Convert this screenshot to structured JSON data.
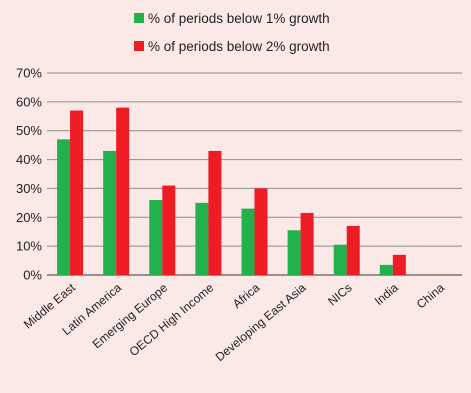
{
  "chart_data": {
    "type": "bar",
    "categories": [
      "Middle East",
      "Latin America",
      "Emerging Europe",
      "OECD High Income",
      "Africa",
      "Developing East Asia",
      "NICs",
      "India",
      "China"
    ],
    "series": [
      {
        "name": "% of periods below 1% growth",
        "color": "#22b14c",
        "values": [
          47,
          43,
          26,
          25,
          23,
          15.5,
          10.5,
          3.5,
          0
        ]
      },
      {
        "name": "% of periods below 2% growth",
        "color": "#ee1c25",
        "values": [
          57,
          58,
          31,
          43,
          30,
          21.5,
          17,
          7,
          0
        ]
      }
    ],
    "ylim": [
      0,
      70
    ],
    "yticks": [
      "0%",
      "10%",
      "20%",
      "30%",
      "40%",
      "50%",
      "60%",
      "70%"
    ],
    "grid": true,
    "legend": "top-center",
    "background": "#fbe9e7"
  }
}
